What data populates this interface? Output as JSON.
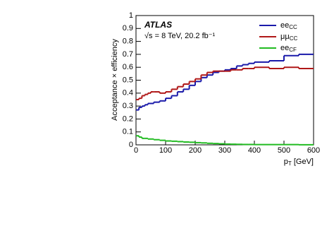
{
  "chart_data": {
    "type": "histogram",
    "experiment": "ATLAS",
    "subtitle": "√s = 8 TeV, 20.2 fb⁻¹",
    "ylabel": "Acceptance × efficiency",
    "xlabel": [
      "p",
      "T",
      " [GeV]"
    ],
    "bins": [
      0,
      10,
      20,
      30,
      40,
      50,
      60,
      80,
      100,
      120,
      140,
      160,
      180,
      200,
      220,
      240,
      260,
      280,
      300,
      320,
      340,
      360,
      380,
      400,
      450,
      500,
      550,
      600
    ],
    "series": [
      {
        "name": "ee",
        "subscript": "CC",
        "color": "#1a1aaa",
        "values": [
          0.27,
          0.29,
          0.3,
          0.31,
          0.32,
          0.32,
          0.33,
          0.34,
          0.36,
          0.38,
          0.41,
          0.43,
          0.46,
          0.49,
          0.52,
          0.54,
          0.56,
          0.57,
          0.58,
          0.59,
          0.61,
          0.62,
          0.63,
          0.64,
          0.65,
          0.69,
          0.7
        ]
      },
      {
        "name": "μμ",
        "subscript": "CC",
        "color": "#b01818",
        "values": [
          0.35,
          0.36,
          0.38,
          0.39,
          0.4,
          0.41,
          0.41,
          0.4,
          0.41,
          0.43,
          0.45,
          0.47,
          0.49,
          0.51,
          0.54,
          0.56,
          0.57,
          0.57,
          0.57,
          0.58,
          0.58,
          0.59,
          0.59,
          0.6,
          0.59,
          0.6,
          0.59
        ]
      },
      {
        "name": "ee",
        "subscript": "CF",
        "color": "#22bb22",
        "values": [
          0.07,
          0.06,
          0.05,
          0.05,
          0.045,
          0.045,
          0.04,
          0.035,
          0.03,
          0.028,
          0.025,
          0.022,
          0.02,
          0.017,
          0.015,
          0.012,
          0.01,
          0.008,
          0.006,
          0.005,
          0.004,
          0.003,
          0.003,
          0.002,
          0.002,
          0.002,
          0.001
        ]
      }
    ],
    "xlim": [
      0,
      600
    ],
    "xticks": [
      0,
      100,
      200,
      300,
      400,
      500,
      600
    ],
    "ylim": [
      0,
      1
    ],
    "yticks": [
      0,
      0.1,
      0.2,
      0.3,
      0.4,
      0.5,
      0.6,
      0.7,
      0.8,
      0.9,
      1
    ]
  }
}
